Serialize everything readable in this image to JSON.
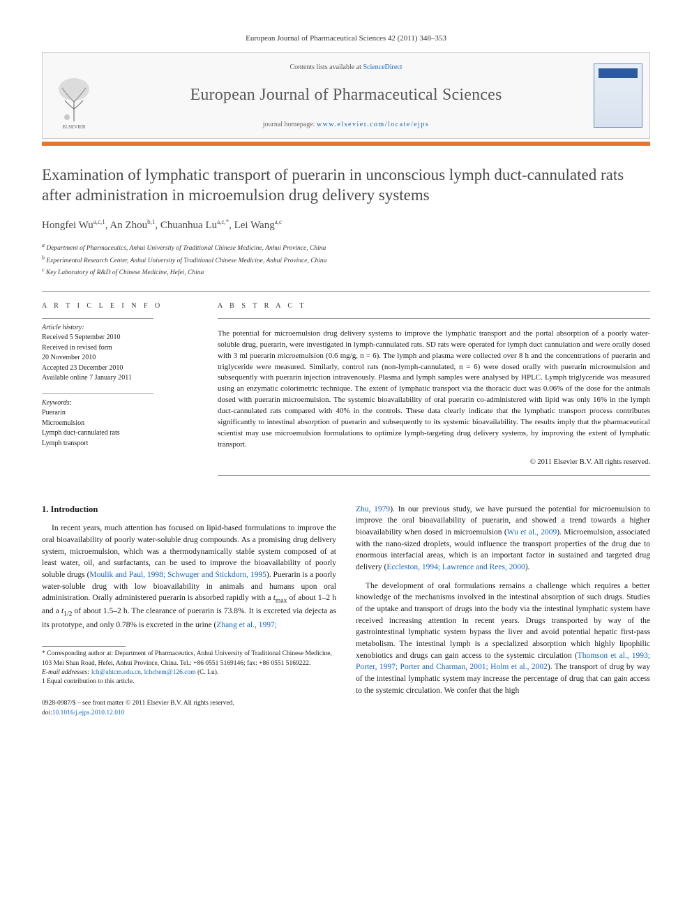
{
  "citation": "European Journal of Pharmaceutical Sciences 42 (2011) 348–353",
  "header": {
    "contents_prefix": "Contents lists available at ",
    "contents_link": "ScienceDirect",
    "journal_name": "European Journal of Pharmaceutical Sciences",
    "homepage_prefix": "journal homepage: ",
    "homepage_url": "www.elsevier.com/locate/ejps",
    "cover_label": "PHARMACEUTICAL SCIENCES"
  },
  "colors": {
    "accent_bar": "#e8762d",
    "link": "#1565c0",
    "title_gray": "#4a4a4a",
    "journal_gray": "#5a5a5a"
  },
  "title": "Examination of lymphatic transport of puerarin in unconscious lymph duct-cannulated rats after administration in microemulsion drug delivery systems",
  "authors_html": "Hongfei Wu<sup class='sup'>a,c,1</sup>, An Zhou<sup class='sup'>b,1</sup>, Chuanhua Lu<sup class='sup'>a,c,*</sup>, Lei Wang<sup class='sup'>a,c</sup>",
  "affiliations": [
    "a Department of Pharmaceutics, Anhui University of Traditional Chinese Medicine, Anhui Province, China",
    "b Experimental Research Center, Anhui University of Traditional Chinese Medicine, Anhui Province, China",
    "c Key Laboratory of R&D of Chinese Medicine, Hefei, China"
  ],
  "article_info_label": "A R T I C L E   I N F O",
  "abstract_label": "A B S T R A C T",
  "history": {
    "head": "Article history:",
    "lines": [
      "Received 5 September 2010",
      "Received in revised form",
      "20 November 2010",
      "Accepted 23 December 2010",
      "Available online 7 January 2011"
    ]
  },
  "keywords": {
    "head": "Keywords:",
    "items": [
      "Puerarin",
      "Microemulsion",
      "Lymph duct-cannulated rats",
      "Lymph transport"
    ]
  },
  "abstract": "The potential for microemulsion drug delivery systems to improve the lymphatic transport and the portal absorption of a poorly water-soluble drug, puerarin, were investigated in lymph-cannulated rats. SD rats were operated for lymph duct cannulation and were orally dosed with 3 ml puerarin microemulsion (0.6 mg/g, n = 6). The lymph and plasma were collected over 8 h and the concentrations of puerarin and triglyceride were measured. Similarly, control rats (non-lymph-cannulated, n = 6) were dosed orally with puerarin microemulsion and subsequently with puerarin injection intravenously. Plasma and lymph samples were analysed by HPLC. Lymph triglyceride was measured using an enzymatic colorimetric technique. The extent of lymphatic transport via the thoracic duct was 0.06% of the dose for the animals dosed with puerarin microemulsion. The systemic bioavailability of oral puerarin co-administered with lipid was only 16% in the lymph duct-cannulated rats compared with 40% in the controls. These data clearly indicate that the lymphatic transport process contributes significantly to intestinal absorption of puerarin and subsequently to its systemic bioavailability. The results imply that the pharmaceutical scientist may use microemulsion formulations to optimize lymph-targeting drug delivery systems, by improving the extent of lymphatic transport.",
  "copyright": "© 2011 Elsevier B.V. All rights reserved.",
  "intro_heading": "1. Introduction",
  "intro_p1_a": "In recent years, much attention has focused on lipid-based formulations to improve the oral bioavailability of poorly water-soluble drug compounds. As a promising drug delivery system, microemulsion, which was a thermodynamically stable system composed of at least water, oil, and surfactants, can be used to improve the bioavailability of poorly soluble drugs (",
  "intro_p1_ref1": "Moulik and Paul, 1998; Schwuger and Stickdorn, 1995",
  "intro_p1_b": "). Puerarin is a poorly water-soluble drug with low bioavailability in animals and humans upon oral administration. Orally administered puerarin is absorbed rapidly with a ",
  "intro_p1_tmax": "t",
  "intro_p1_tmax_sub": "max",
  "intro_p1_c": " of about 1–2 h and a ",
  "intro_p1_thalf": "t",
  "intro_p1_thalf_sub": "1/2",
  "intro_p1_d": " of about 1.5–2 h. The clearance of puerarin is 73.8%. It is excreted via dejecta as its prototype, and only 0.78% is excreted in the urine (",
  "intro_p1_ref2": "Zhang et al., 1997;",
  "intro_p1_ref3": "Zhu, 1979",
  "intro_p1_e": "). In our previous study, we have pursued the potential for microemulsion to improve the oral bioavailability of puerarin, and showed a trend towards a higher bioavailability when dosed in microemulsion (",
  "intro_p1_ref4": "Wu et al., 2009",
  "intro_p1_f": "). Microemulsion, associated with the nano-sized droplets, would influence the transport properties of the drug due to enormous interfacial areas, which is an important factor in sustained and targeted drug delivery (",
  "intro_p1_ref5": "Eccleston, 1994; Lawrence and Rees, 2000",
  "intro_p1_g": ").",
  "intro_p2_a": "The development of oral formulations remains a challenge which requires a better knowledge of the mechanisms involved in the intestinal absorption of such drugs. Studies of the uptake and transport of drugs into the body via the intestinal lymphatic system have received increasing attention in recent years. Drugs transported by way of the gastrointestinal lymphatic system bypass the liver and avoid potential hepatic first-pass metabolism. The intestinal lymph is a specialized absorption which highly lipophilic xenobiotics and drugs can gain access to the systemic circulation (",
  "intro_p2_ref1": "Thomson et al., 1993; Porter, 1997; Porter and Charman, 2001; Holm et al., 2002",
  "intro_p2_b": "). The transport of drug by way of the intestinal lymphatic system may increase the percentage of drug that can gain access to the systemic circulation. We confer that the high",
  "footnotes": {
    "corr": "* Corresponding author at: Department of Pharmaceutics, Anhui University of Traditional Chinese Medicine, 103 Mei Shan Road, Hefei, Anhui Province, China. Tel.: +86 0551 5169146; fax: +86 0551 5169222.",
    "email_label": "E-mail addresses: ",
    "email1": "lch@ahtcm.edu.cn",
    "email_sep": ", ",
    "email2": "lchchem@126.com",
    "email_suffix": " (C. Lu).",
    "equal": "1 Equal contribution to this article."
  },
  "bottom": {
    "line1": "0928-0987/$ – see front matter © 2011 Elsevier B.V. All rights reserved.",
    "doi_label": "doi:",
    "doi": "10.1016/j.ejps.2010.12.010"
  }
}
